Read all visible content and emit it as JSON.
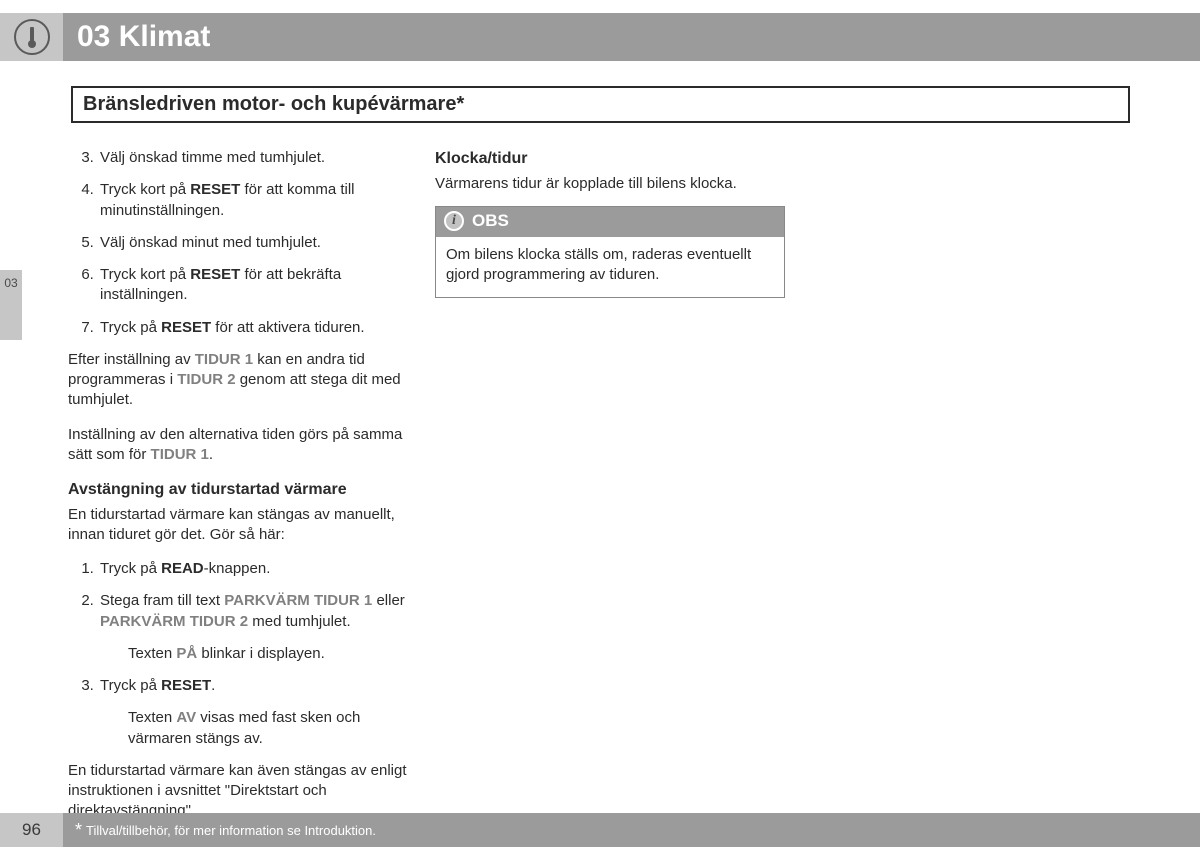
{
  "header": {
    "chapter": "03 Klimat"
  },
  "section_title": "Bränsledriven motor- och kupévärmare*",
  "side_tab": "03",
  "col1": {
    "steps_a": [
      {
        "n": 3,
        "html": "Välj önskad timme med tumhjulet."
      },
      {
        "n": 4,
        "html": "Tryck kort på <b class='b'>RESET</b> för att komma till minutinställningen."
      },
      {
        "n": 5,
        "html": "Välj önskad minut med tumhjulet."
      },
      {
        "n": 6,
        "html": "Tryck kort på <b class='b'>RESET</b> för att bekräfta inställningen."
      },
      {
        "n": 7,
        "html": "Tryck på <b class='b'>RESET</b> för att aktivera tiduren."
      }
    ],
    "para1": "Efter inställning av <span class='grey-bold'>TIDUR 1</span> kan en andra tid programmeras i <span class='grey-bold'>TIDUR 2</span> genom att stega dit med tumhjulet.",
    "para2": "Inställning av den alternativa tiden görs på samma sätt som för <span class='grey-bold'>TIDUR 1</span>.",
    "sub_h": "Avstängning av tidurstartad värmare",
    "para3": "En tidurstartad värmare kan stängas av manuellt, innan tiduret gör det. Gör så här:",
    "steps_b": [
      {
        "n": 1,
        "html": "Tryck på <b class='b'>READ</b>-knappen."
      },
      {
        "n": 2,
        "html": "Stega fram till text <span class='grey-bold'>PARKVÄRM TIDUR 1</span> eller <span class='grey-bold'>PARKVÄRM TIDUR 2</span> med tumhjulet.",
        "after": "Texten <span class='grey-bold'>PÅ</span> blinkar i displayen."
      },
      {
        "n": 3,
        "html": "Tryck på <b class='b'>RESET</b>.",
        "after": "Texten <span class='grey-bold'>AV</span> visas med fast sken och värmaren stängs av."
      }
    ],
    "para4": "En tidurstartad värmare kan även stängas av enligt instruktionen i avsnittet \"Direktstart och direktavstängning\"."
  },
  "col2": {
    "sub_h": "Klocka/tidur",
    "para": "Värmarens tidur är kopplade till bilens klocka.",
    "obs_label": "OBS",
    "obs_body": "Om bilens klocka ställs om, raderas eventuellt gjord programmering av tiduren."
  },
  "footer": {
    "page": "96",
    "text": "Tillval/tillbehör, för mer information se Introduktion."
  }
}
